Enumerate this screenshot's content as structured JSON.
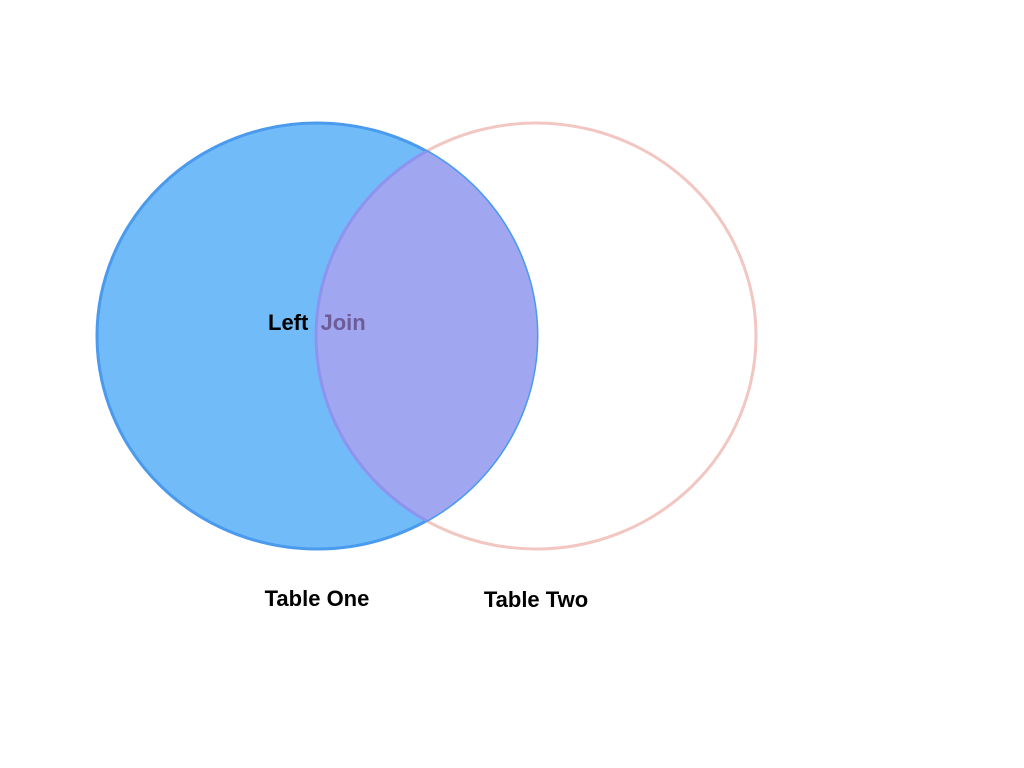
{
  "diagram": {
    "title_part1": "Left",
    "title_part2": "Join",
    "left_set_label": "Table One",
    "right_set_label": "Table Two"
  },
  "colors": {
    "background": "#ffffff",
    "left_fill": "#71bcf8",
    "left_stroke": "#4a9aee",
    "intersection_fill": "#a0a6ef",
    "intersection_stroke": "#8d93ef",
    "right_stroke": "#f2c6c1",
    "label_text": "#000000",
    "join_text": "#6e5c99"
  }
}
